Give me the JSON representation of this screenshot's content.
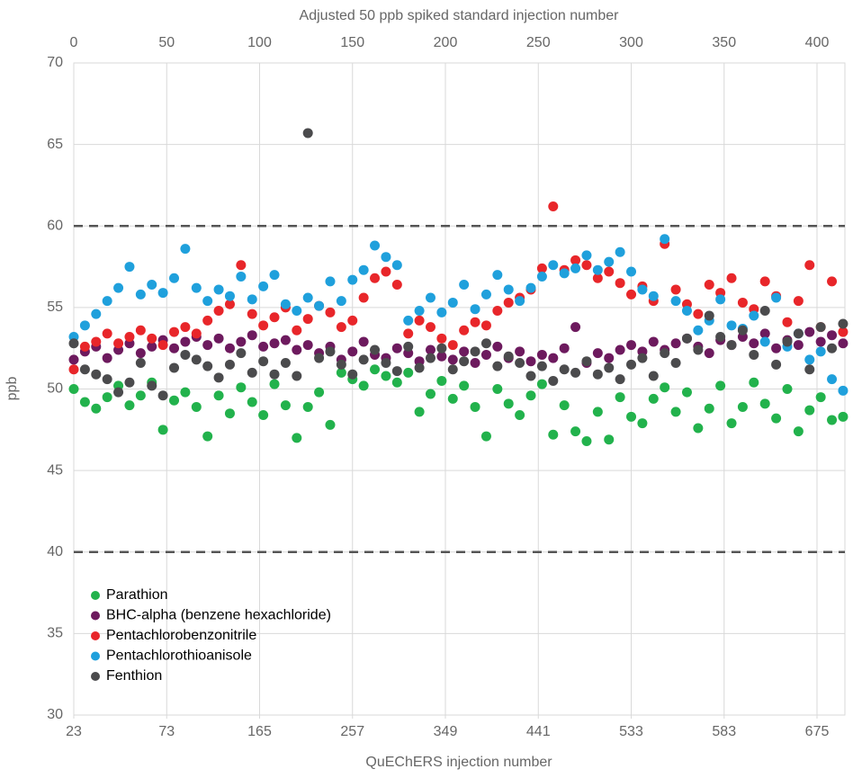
{
  "chart_data": {
    "type": "scatter",
    "top_xlabel": "Adjusted 50 ppb spiked standard injection number",
    "xlabel": "QuEChERS injection number",
    "ylabel": "ppb",
    "xlim": [
      0,
      415
    ],
    "xticks": [
      0,
      50,
      100,
      150,
      200,
      250,
      300,
      350,
      400
    ],
    "bottom_xticks": [
      {
        "value": 0,
        "label": "23"
      },
      {
        "value": 50,
        "label": "73"
      },
      {
        "value": 100,
        "label": "165"
      },
      {
        "value": 150,
        "label": "257"
      },
      {
        "value": 200,
        "label": "349"
      },
      {
        "value": 250,
        "label": "441"
      },
      {
        "value": 300,
        "label": "533"
      },
      {
        "value": 350,
        "label": "583"
      },
      {
        "value": 400,
        "label": "675"
      }
    ],
    "ylim": [
      30,
      70
    ],
    "yticks": [
      30,
      35,
      40,
      45,
      50,
      55,
      60,
      65,
      70
    ],
    "grid": true,
    "reference_lines": [
      40,
      60
    ],
    "legend": "lower left",
    "x": [
      0,
      6,
      12,
      18,
      24,
      30,
      36,
      42,
      48,
      54,
      60,
      66,
      72,
      78,
      84,
      90,
      96,
      102,
      108,
      114,
      120,
      126,
      132,
      138,
      144,
      150,
      156,
      162,
      168,
      174,
      180,
      186,
      192,
      198,
      204,
      210,
      216,
      222,
      228,
      234,
      240,
      246,
      252,
      258,
      264,
      270,
      276,
      282,
      288,
      294,
      300,
      306,
      312,
      318,
      324,
      330,
      336,
      342,
      348,
      354,
      360,
      366,
      372,
      378,
      384,
      390,
      396,
      402,
      408,
      414
    ],
    "series": [
      {
        "name": "Parathion",
        "color": "#22b24c",
        "values": [
          50,
          49.2,
          48.8,
          49.5,
          50.2,
          49,
          49.6,
          50.4,
          47.5,
          49.3,
          49.8,
          48.9,
          47.1,
          49.6,
          48.5,
          50.1,
          49.2,
          48.4,
          50.3,
          49,
          47,
          48.9,
          49.8,
          47.8,
          51,
          50.6,
          50.2,
          51.2,
          50.8,
          50.4,
          51,
          48.6,
          49.7,
          50.5,
          49.4,
          50.2,
          48.9,
          47.1,
          50,
          49.1,
          48.4,
          49.6,
          50.3,
          47.2,
          49,
          47.4,
          46.8,
          48.6,
          46.9,
          49.5,
          48.3,
          47.9,
          49.4,
          50.1,
          48.6,
          49.8,
          47.6,
          48.8,
          50.2,
          47.9,
          48.9,
          50.4,
          49.1,
          48.2,
          50,
          47.4,
          48.7,
          49.5,
          48.1,
          48.3
        ]
      },
      {
        "name": "BHC-alpha (benzene hexachloride)",
        "color": "#6d1a5e",
        "values": [
          51.8,
          52.3,
          52.6,
          51.9,
          52.4,
          52.8,
          52.2,
          52.6,
          53,
          52.5,
          52.9,
          53.2,
          52.7,
          53.1,
          52.5,
          52.9,
          53.3,
          52.6,
          52.8,
          53,
          52.4,
          52.7,
          52.2,
          52.6,
          51.8,
          52.3,
          52.9,
          52.1,
          51.9,
          52.5,
          52.2,
          51.7,
          52.4,
          52,
          51.8,
          52.3,
          51.6,
          52.1,
          52.6,
          51.9,
          52.3,
          51.7,
          52.1,
          51.9,
          52.5,
          53.8,
          51.6,
          52.2,
          51.9,
          52.4,
          52.7,
          52.3,
          52.9,
          52.4,
          52.8,
          53.1,
          52.6,
          52.2,
          53,
          52.7,
          53.2,
          52.8,
          53.4,
          52.5,
          53,
          52.7,
          53.5,
          52.9,
          53.3,
          52.8
        ]
      },
      {
        "name": "Pentachlorobenzonitrile",
        "color": "#e8262a",
        "values": [
          51.2,
          52.6,
          52.9,
          53.4,
          52.8,
          53.2,
          53.6,
          53.1,
          52.7,
          53.5,
          53.8,
          53.4,
          54.2,
          54.8,
          55.2,
          57.6,
          54.6,
          53.9,
          54.4,
          55,
          53.6,
          54.3,
          55.1,
          54.7,
          53.8,
          54.2,
          55.6,
          56.8,
          57.2,
          56.4,
          53.4,
          54.2,
          53.8,
          53.1,
          52.7,
          53.6,
          54.1,
          53.9,
          54.8,
          55.3,
          55.6,
          56.1,
          57.4,
          61.2,
          57.3,
          57.9,
          57.6,
          56.8,
          57.2,
          56.5,
          55.8,
          56.3,
          55.4,
          58.9,
          56.1,
          55.2,
          54.6,
          56.4,
          55.9,
          56.8,
          55.3,
          54.9,
          56.6,
          55.7,
          54.1,
          55.4,
          57.6,
          53.8,
          56.6,
          53.5
        ]
      },
      {
        "name": "Pentachlorothioanisole",
        "color": "#1fa0dc",
        "values": [
          53.2,
          53.9,
          54.6,
          55.4,
          56.2,
          57.5,
          55.8,
          56.4,
          55.9,
          56.8,
          58.6,
          56.2,
          55.4,
          56.1,
          55.7,
          56.9,
          55.5,
          56.3,
          57,
          55.2,
          54.8,
          55.6,
          55.1,
          56.6,
          55.4,
          56.7,
          57.3,
          58.8,
          58.1,
          57.6,
          54.2,
          54.8,
          55.6,
          54.7,
          55.3,
          56.4,
          54.9,
          55.8,
          57,
          56.1,
          55.4,
          56.2,
          56.9,
          57.6,
          57.1,
          57.4,
          58.2,
          57.3,
          57.8,
          58.4,
          57.2,
          56.1,
          55.7,
          59.2,
          55.4,
          54.8,
          53.6,
          54.2,
          55.5,
          53.9,
          53.7,
          54.5,
          52.9,
          55.6,
          52.6,
          53.4,
          51.8,
          52.3,
          50.6,
          49.9
        ]
      },
      {
        "name": "Fenthion",
        "color": "#4b4b4d",
        "values": [
          52.8,
          51.2,
          50.9,
          50.6,
          49.8,
          50.4,
          51.6,
          50.2,
          49.6,
          51.3,
          52.1,
          51.8,
          51.4,
          50.7,
          51.5,
          52.2,
          51,
          51.7,
          50.9,
          51.6,
          50.8,
          65.7,
          51.9,
          52.3,
          51.5,
          50.9,
          51.8,
          52.4,
          51.6,
          51.1,
          52.6,
          51.3,
          51.9,
          52.5,
          51.2,
          51.7,
          52.3,
          52.8,
          51.4,
          52,
          51.6,
          50.8,
          51.4,
          50.5,
          51.2,
          51,
          51.7,
          50.9,
          51.3,
          50.6,
          51.5,
          51.9,
          50.8,
          52.2,
          51.6,
          53.1,
          52.4,
          54.5,
          53.2,
          52.7,
          53.6,
          52.1,
          54.8,
          51.5,
          52.9,
          53.4,
          51.2,
          53.8,
          52.5,
          54
        ]
      }
    ]
  }
}
